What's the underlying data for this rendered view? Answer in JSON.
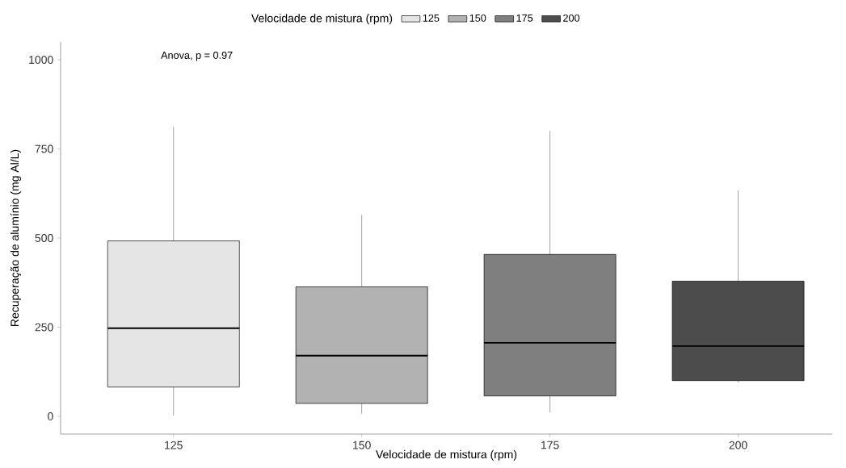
{
  "chart_data": {
    "type": "box",
    "xlabel": "Velocidade de mistura (rpm)",
    "ylabel": "Recuperação de alumínio (mg Al/L)",
    "legend_title": "Velocidade de mistura (rpm)",
    "legend": "top",
    "categories": [
      "125",
      "150",
      "175",
      "200"
    ],
    "series": [
      {
        "name": "125",
        "color": "#e5e5e5",
        "boxes": [
          {
            "low": 2,
            "q1": 82,
            "median": 247,
            "q3": 492,
            "high": 812
          },
          null,
          null,
          null
        ]
      },
      {
        "name": "150",
        "color": "#b2b2b2",
        "boxes": [
          null,
          {
            "low": 7,
            "q1": 36,
            "median": 170,
            "q3": 363,
            "high": 565
          },
          null,
          null
        ]
      },
      {
        "name": "175",
        "color": "#7f7f7f",
        "boxes": [
          null,
          null,
          {
            "low": 11,
            "q1": 57,
            "median": 206,
            "q3": 454,
            "high": 800
          },
          null
        ]
      },
      {
        "name": "200",
        "color": "#4c4c4c",
        "boxes": [
          null,
          null,
          null,
          {
            "low": 95,
            "q1": 100,
            "median": 197,
            "q3": 379,
            "high": 633
          }
        ]
      }
    ],
    "ylim": [
      -50,
      1050
    ],
    "yticks": [
      0,
      250,
      500,
      750,
      1000
    ],
    "annotations": [
      "Anova, p = 0.97"
    ]
  }
}
